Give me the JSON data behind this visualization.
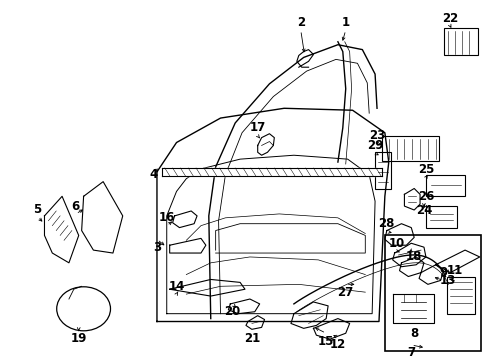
{
  "bg_color": "#ffffff",
  "fig_w": 4.89,
  "fig_h": 3.6,
  "dpi": 100
}
